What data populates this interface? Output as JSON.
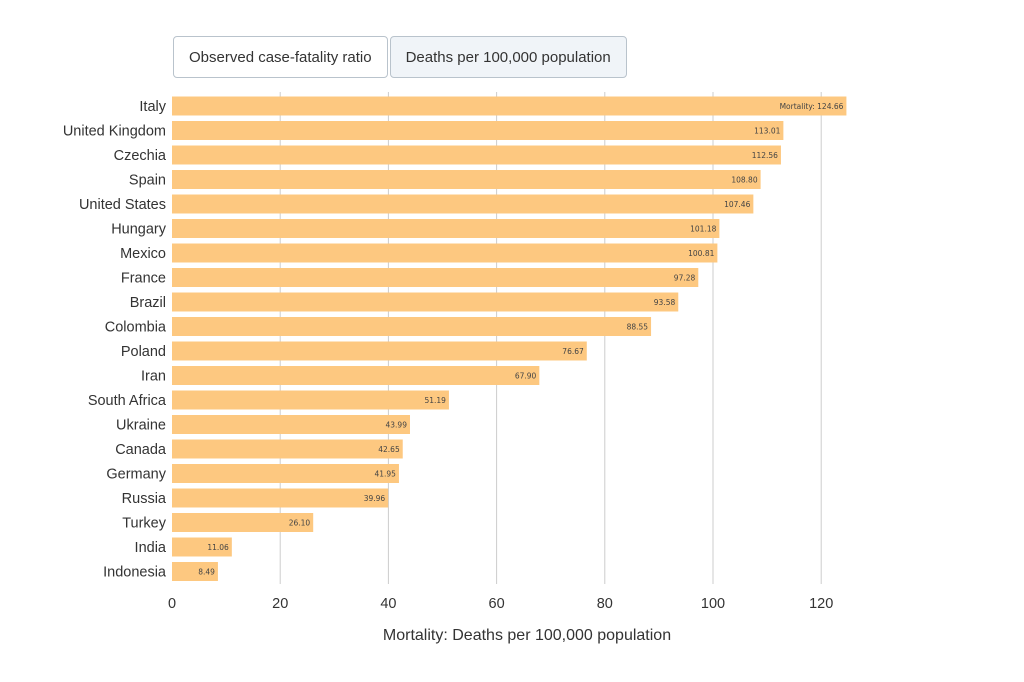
{
  "tabs": [
    {
      "label": "Observed case-fatality ratio",
      "active": false
    },
    {
      "label": "Deaths per 100,000 population",
      "active": true
    }
  ],
  "colors": {
    "bar": "#fdc880",
    "grid": "#cccccc",
    "text": "#333333"
  },
  "chart_data": {
    "type": "bar",
    "orientation": "horizontal",
    "categories": [
      "Italy",
      "United Kingdom",
      "Czechia",
      "Spain",
      "United States",
      "Hungary",
      "Mexico",
      "France",
      "Brazil",
      "Colombia",
      "Poland",
      "Iran",
      "South Africa",
      "Ukraine",
      "Canada",
      "Germany",
      "Russia",
      "Turkey",
      "India",
      "Indonesia"
    ],
    "values": [
      124.66,
      113.01,
      112.56,
      108.8,
      107.46,
      101.18,
      100.81,
      97.28,
      93.58,
      88.55,
      76.67,
      67.9,
      51.19,
      43.99,
      42.65,
      41.95,
      39.96,
      26.1,
      11.06,
      8.49
    ],
    "value_labels": [
      "Mortality: 124.66",
      "113.01",
      "112.56",
      "108.80",
      "107.46",
      "101.18",
      "100.81",
      "97.28",
      "93.58",
      "88.55",
      "76.67",
      "67.90",
      "51.19",
      "43.99",
      "42.65",
      "41.95",
      "39.96",
      "26.10",
      "11.06",
      "8.49"
    ],
    "xlabel": "Mortality: Deaths per 100,000 population",
    "xticks": [
      0,
      20,
      40,
      60,
      80,
      100,
      120
    ],
    "xlim": [
      0,
      130
    ],
    "grid": true
  }
}
